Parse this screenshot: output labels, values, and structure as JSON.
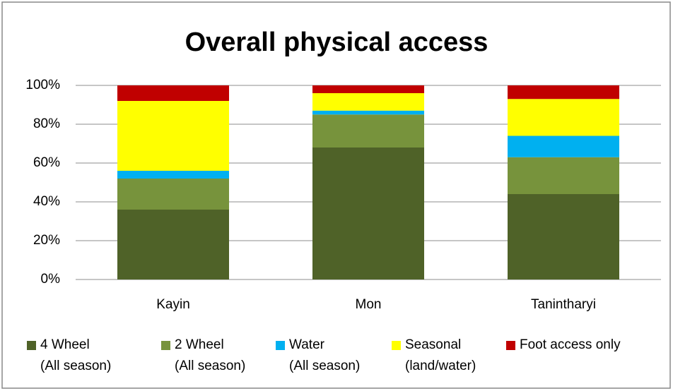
{
  "chart_data": {
    "type": "stacked_bar",
    "title": "Overall physical access",
    "categories": [
      "Kayin",
      "Mon",
      "Tanintharyi"
    ],
    "series": [
      {
        "name": "4 Wheel\n(All season)",
        "color": "#4f6228",
        "values": [
          36,
          68,
          44
        ]
      },
      {
        "name": "2 Wheel\n(All season)",
        "color": "#77933c",
        "values": [
          16,
          17,
          19
        ]
      },
      {
        "name": "Water\n(All season)",
        "color": "#00b0f0",
        "values": [
          4,
          2,
          11
        ]
      },
      {
        "name": "Seasonal\n(land/water)",
        "color": "#ffff00",
        "values": [
          36,
          9,
          19
        ]
      },
      {
        "name": "Foot access only",
        "color": "#c00000",
        "values": [
          8,
          4,
          7
        ]
      }
    ],
    "ylim": [
      0,
      100
    ],
    "yticks": [
      {
        "value": 0,
        "label": "0%"
      },
      {
        "value": 20,
        "label": "20%"
      },
      {
        "value": 40,
        "label": "40%"
      },
      {
        "value": 60,
        "label": "60%"
      },
      {
        "value": 80,
        "label": "80%"
      },
      {
        "value": 100,
        "label": "100%"
      }
    ],
    "grid": true,
    "legend": "bottom"
  }
}
